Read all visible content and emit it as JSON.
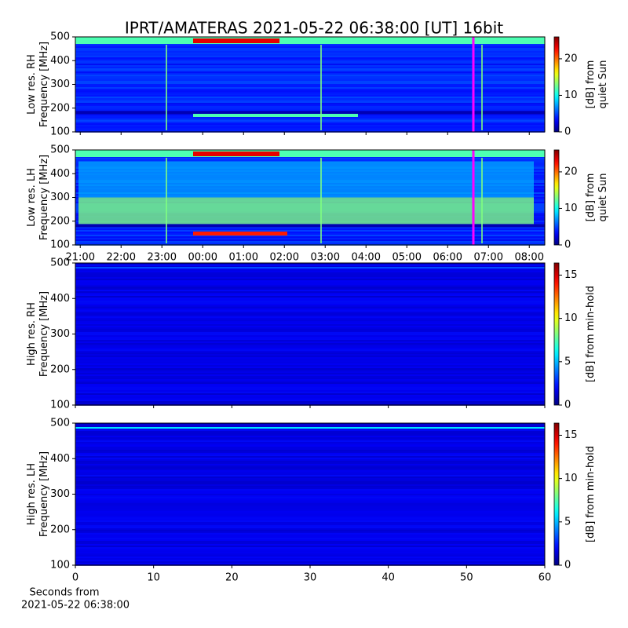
{
  "title": "IPRT/AMATERAS 2021-05-22 06:38:00 [UT]   16bit",
  "chart_data": [
    {
      "type": "heatmap",
      "colormap": "jet",
      "ylabel": [
        "Low res. RH",
        "Frequency [MHz]"
      ],
      "ylim": [
        100,
        500
      ],
      "yticks": [
        100,
        200,
        300,
        400,
        500
      ],
      "xlim": [
        20.88,
        32.38
      ],
      "xticks": [
        {
          "value": 21,
          "label": "21:00"
        },
        {
          "value": 22,
          "label": "22:00"
        },
        {
          "value": 23,
          "label": "23:00"
        },
        {
          "value": 24,
          "label": "00:00"
        },
        {
          "value": 25,
          "label": "01:00"
        },
        {
          "value": 26,
          "label": "02:00"
        },
        {
          "value": 27,
          "label": "03:00"
        },
        {
          "value": 28,
          "label": "04:00"
        },
        {
          "value": 29,
          "label": "05:00"
        },
        {
          "value": 30,
          "label": "06:00"
        },
        {
          "value": 31,
          "label": "07:00"
        },
        {
          "value": 32,
          "label": "08:00"
        }
      ],
      "xtick_labels": false,
      "marker_line": {
        "x": 30.63,
        "color": "#ff00ff"
      },
      "colorbar": {
        "label": [
          "[dB] from",
          "quiet Sun"
        ],
        "lim": [
          0,
          26
        ],
        "ticks": [
          0,
          10,
          20
        ]
      }
    },
    {
      "type": "heatmap",
      "colormap": "jet",
      "ylabel": [
        "Low res. LH",
        "Frequency [MHz]"
      ],
      "ylim": [
        100,
        500
      ],
      "yticks": [
        100,
        200,
        300,
        400,
        500
      ],
      "xlim": [
        20.88,
        32.38
      ],
      "xticks": [
        {
          "value": 21,
          "label": "21:00"
        },
        {
          "value": 22,
          "label": "22:00"
        },
        {
          "value": 23,
          "label": "23:00"
        },
        {
          "value": 24,
          "label": "00:00"
        },
        {
          "value": 25,
          "label": "01:00"
        },
        {
          "value": 26,
          "label": "02:00"
        },
        {
          "value": 27,
          "label": "03:00"
        },
        {
          "value": 28,
          "label": "04:00"
        },
        {
          "value": 29,
          "label": "05:00"
        },
        {
          "value": 30,
          "label": "06:00"
        },
        {
          "value": 31,
          "label": "07:00"
        },
        {
          "value": 32,
          "label": "08:00"
        }
      ],
      "xtick_labels": true,
      "marker_line": {
        "x": 30.63,
        "color": "#ff00ff"
      },
      "colorbar": {
        "label": [
          "[dB] from",
          "quiet Sun"
        ],
        "lim": [
          0,
          26
        ],
        "ticks": [
          0,
          10,
          20
        ]
      }
    },
    {
      "type": "heatmap",
      "colormap": "jet",
      "ylabel": [
        "High res. RH",
        "Frequency [MHz]"
      ],
      "ylim": [
        100,
        500
      ],
      "yticks": [
        100,
        200,
        300,
        400,
        500
      ],
      "xlim": [
        0,
        60
      ],
      "xticks": [
        0,
        10,
        20,
        30,
        40,
        50,
        60
      ],
      "xtick_labels": false,
      "colorbar": {
        "label": [
          "[dB] from min-hold"
        ],
        "lim": [
          0,
          16.4
        ],
        "ticks": [
          0,
          5,
          10,
          15
        ]
      }
    },
    {
      "type": "heatmap",
      "colormap": "jet",
      "ylabel": [
        "High res. LH",
        "Frequency [MHz]"
      ],
      "ylim": [
        100,
        500
      ],
      "yticks": [
        100,
        200,
        300,
        400,
        500
      ],
      "xlim": [
        0,
        60
      ],
      "xticks": [
        0,
        10,
        20,
        30,
        40,
        50,
        60
      ],
      "xtick_labels": true,
      "xlabel": [
        "Seconds from",
        "2021-05-22 06:38:00"
      ],
      "colorbar": {
        "label": [
          "[dB] from min-hold"
        ],
        "lim": [
          0,
          16.4
        ],
        "ticks": [
          0,
          5,
          10,
          15
        ]
      }
    }
  ]
}
